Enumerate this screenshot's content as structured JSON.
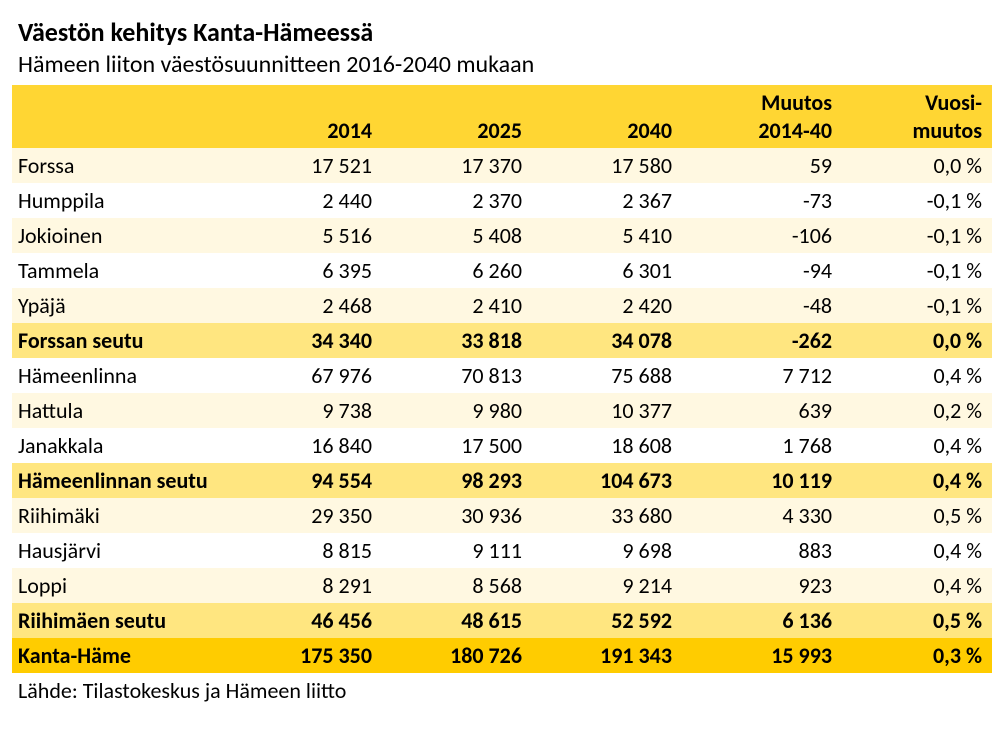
{
  "title": "Väestön kehitys Kanta-Hämeessä",
  "subtitle": "Hämeen liiton väestösuunnitteen 2016-2040 mukaan",
  "source": "Lähde: Tilastokeskus ja Hämeen liitto",
  "colors": {
    "header_bg": "#ffd633",
    "subtotal_bg": "#ffe680",
    "odd_row_bg": "#fff8e1",
    "grand_total_bg": "#ffcc00",
    "text": "#000000"
  },
  "fonts": {
    "family": "Calibri, 'Segoe UI', Arial, sans-serif",
    "title_size": 26,
    "body_size": 22
  },
  "table": {
    "type": "table",
    "columns": [
      "",
      "2014",
      "2025",
      "2040",
      "Muutos 2014-40",
      "Vuosi-muutos"
    ],
    "header_multiline": [
      "",
      "2014",
      "2025",
      "2040",
      "Muutos<br>2014-40",
      "Vuosi-<br>muutos"
    ],
    "rows": [
      {
        "label": "Forssa",
        "y2014": "17 521",
        "y2025": "17 370",
        "y2040": "17 580",
        "muutos": "59",
        "vuosi": "0,0 %",
        "style": "normal"
      },
      {
        "label": "Humppila",
        "y2014": "2 440",
        "y2025": "2 370",
        "y2040": "2 367",
        "muutos": "-73",
        "vuosi": "-0,1 %",
        "style": "normal"
      },
      {
        "label": "Jokioinen",
        "y2014": "5 516",
        "y2025": "5 408",
        "y2040": "5 410",
        "muutos": "-106",
        "vuosi": "-0,1 %",
        "style": "normal"
      },
      {
        "label": "Tammela",
        "y2014": "6 395",
        "y2025": "6 260",
        "y2040": "6 301",
        "muutos": "-94",
        "vuosi": "-0,1 %",
        "style": "normal"
      },
      {
        "label": "Ypäjä",
        "y2014": "2 468",
        "y2025": "2 410",
        "y2040": "2 420",
        "muutos": "-48",
        "vuosi": "-0,1 %",
        "style": "normal"
      },
      {
        "label": "Forssan seutu",
        "y2014": "34 340",
        "y2025": "33 818",
        "y2040": "34 078",
        "muutos": "-262",
        "vuosi": "0,0 %",
        "style": "subtotal"
      },
      {
        "label": "Hämeenlinna",
        "y2014": "67 976",
        "y2025": "70 813",
        "y2040": "75 688",
        "muutos": "7 712",
        "vuosi": "0,4 %",
        "style": "normal"
      },
      {
        "label": "Hattula",
        "y2014": "9 738",
        "y2025": "9 980",
        "y2040": "10 377",
        "muutos": "639",
        "vuosi": "0,2 %",
        "style": "normal"
      },
      {
        "label": "Janakkala",
        "y2014": "16 840",
        "y2025": "17 500",
        "y2040": "18 608",
        "muutos": "1 768",
        "vuosi": "0,4 %",
        "style": "normal"
      },
      {
        "label": "Hämeenlinnan seutu",
        "y2014": "94 554",
        "y2025": "98 293",
        "y2040": "104 673",
        "muutos": "10 119",
        "vuosi": "0,4 %",
        "style": "subtotal"
      },
      {
        "label": "Riihimäki",
        "y2014": "29 350",
        "y2025": "30 936",
        "y2040": "33 680",
        "muutos": "4 330",
        "vuosi": "0,5 %",
        "style": "normal"
      },
      {
        "label": "Hausjärvi",
        "y2014": "8 815",
        "y2025": "9 111",
        "y2040": "9 698",
        "muutos": "883",
        "vuosi": "0,4 %",
        "style": "normal"
      },
      {
        "label": "Loppi",
        "y2014": "8 291",
        "y2025": "8 568",
        "y2040": "9 214",
        "muutos": "923",
        "vuosi": "0,4 %",
        "style": "normal"
      },
      {
        "label": "Riihimäen seutu",
        "y2014": "46 456",
        "y2025": "48 615",
        "y2040": "52 592",
        "muutos": "6 136",
        "vuosi": "0,5 %",
        "style": "subtotal"
      },
      {
        "label": "Kanta-Häme",
        "y2014": "175 350",
        "y2025": "180 726",
        "y2040": "191 343",
        "muutos": "15 993",
        "vuosi": "0,3 %",
        "style": "grand"
      }
    ]
  }
}
